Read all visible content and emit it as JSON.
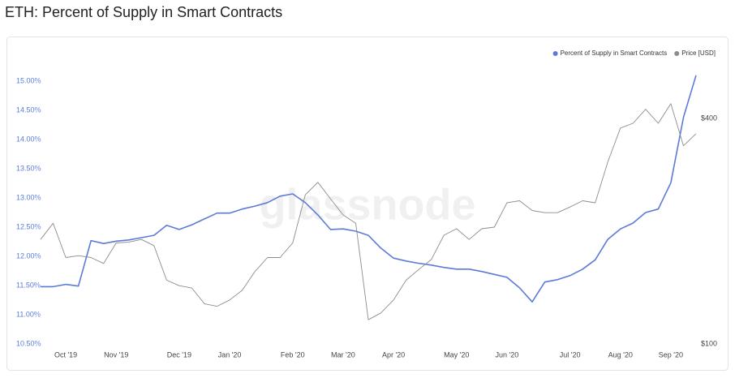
{
  "chart_data": {
    "type": "line",
    "title": "ETH: Percent of Supply in Smart Contracts",
    "watermark": "glassnode",
    "legend": "top-right",
    "categories": [
      null,
      null,
      "Oct '19",
      null,
      null,
      null,
      "Nov '19",
      null,
      null,
      null,
      null,
      "Dec '19",
      null,
      null,
      null,
      "Jan '20",
      null,
      null,
      null,
      null,
      "Feb '20",
      null,
      null,
      null,
      "Mar '20",
      null,
      null,
      null,
      "Apr '20",
      null,
      null,
      null,
      null,
      "May '20",
      null,
      null,
      null,
      "Jun '20",
      null,
      null,
      null,
      null,
      "Jul '20",
      null,
      null,
      null,
      "Aug '20",
      null,
      null,
      null,
      "Sep '20",
      null,
      null
    ],
    "series": [
      {
        "name": "Percent of Supply in Smart Contracts",
        "color": "#5b7bd6",
        "values": [
          11.48,
          11.48,
          11.52,
          11.49,
          12.27,
          12.22,
          12.26,
          12.28,
          12.32,
          12.36,
          12.53,
          12.46,
          12.54,
          12.64,
          12.74,
          12.74,
          12.81,
          12.86,
          12.92,
          13.03,
          13.07,
          12.92,
          12.71,
          12.46,
          12.47,
          12.43,
          12.36,
          12.14,
          11.97,
          11.92,
          11.88,
          11.85,
          11.81,
          11.78,
          11.78,
          11.74,
          11.69,
          11.64,
          11.46,
          11.22,
          11.56,
          11.6,
          11.67,
          11.78,
          11.94,
          12.29,
          12.47,
          12.57,
          12.75,
          12.81,
          13.26,
          14.38,
          15.1
        ]
      },
      {
        "name": "Price [USD]",
        "color": "#8c8c8c",
        "axis": "y2",
        "values": [
          190,
          210,
          170,
          172,
          170,
          164,
          186,
          187,
          190,
          183,
          148,
          143,
          141,
          128,
          126,
          131,
          139,
          156,
          170,
          170,
          186,
          250,
          270,
          244,
          221,
          210,
          116,
          121,
          131,
          148,
          158,
          168,
          195,
          203,
          190,
          203,
          205,
          238,
          241,
          227,
          224,
          224,
          232,
          241,
          238,
          306,
          377,
          388,
          423,
          388,
          438,
          338,
          364
        ]
      }
    ],
    "ylim": [
      10.5,
      15.25
    ],
    "yticks": [
      {
        "value": 10.5,
        "label": "10.50%"
      },
      {
        "value": 11,
        "label": "11.00%"
      },
      {
        "value": 11.5,
        "label": "11.50%"
      },
      {
        "value": 12,
        "label": "12.00%"
      },
      {
        "value": 12.5,
        "label": "12.50%"
      },
      {
        "value": 13,
        "label": "13.00%"
      },
      {
        "value": 13.5,
        "label": "13.50%"
      },
      {
        "value": 14,
        "label": "14.00%"
      },
      {
        "value": 14.5,
        "label": "14.50%"
      },
      {
        "value": 15,
        "label": "15.00%"
      }
    ],
    "y2lim": [
      100,
      550
    ],
    "y2ticks": [
      {
        "value": 100,
        "label": "$100"
      },
      {
        "value": 400,
        "label": "$400"
      }
    ],
    "y2scale": "log"
  }
}
